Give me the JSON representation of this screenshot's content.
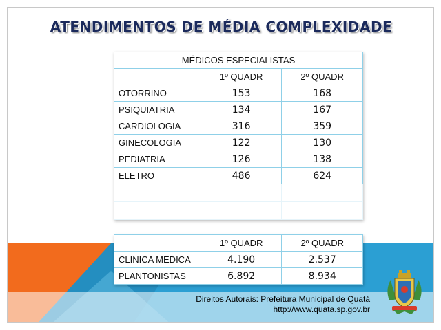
{
  "title": "ATENDIMENTOS DE  MÉDIA COMPLEXIDADE",
  "table1": {
    "caption": "MÉDICOS ESPECIALISTAS",
    "columns": [
      "1º QUADR",
      "2º QUADR"
    ],
    "rows": [
      {
        "label": "OTORRINO",
        "q1": "153",
        "q2": "168"
      },
      {
        "label": "PSIQUIATRIA",
        "q1": "134",
        "q2": "167"
      },
      {
        "label": "CARDIOLOGIA",
        "q1": "316",
        "q2": "359"
      },
      {
        "label": "GINECOLOGIA",
        "q1": "122",
        "q2": "130"
      },
      {
        "label": "PEDIATRIA",
        "q1": "126",
        "q2": "138"
      },
      {
        "label": "ELETRO",
        "q1": "486",
        "q2": "624"
      }
    ]
  },
  "table2": {
    "columns": [
      "1º QUADR",
      "2º QUADR"
    ],
    "rows": [
      {
        "label": "CLINICA MEDICA",
        "q1": "4.190",
        "q2": "2.537"
      },
      {
        "label": "PLANTONISTAS",
        "q1": "6.892",
        "q2": "8.934"
      }
    ]
  },
  "footer": {
    "line1": "Direitos Autorais: Prefeitura Municipal de Quatá",
    "line2": "http://www.quata.sp.gov.br"
  },
  "colors": {
    "title": "#1b2a5c",
    "band_orange": "#f26b1d",
    "band_blue": "#2b9fd3",
    "table_border": "#8fd0e8"
  },
  "icons": [
    "municipal-crest-icon"
  ]
}
